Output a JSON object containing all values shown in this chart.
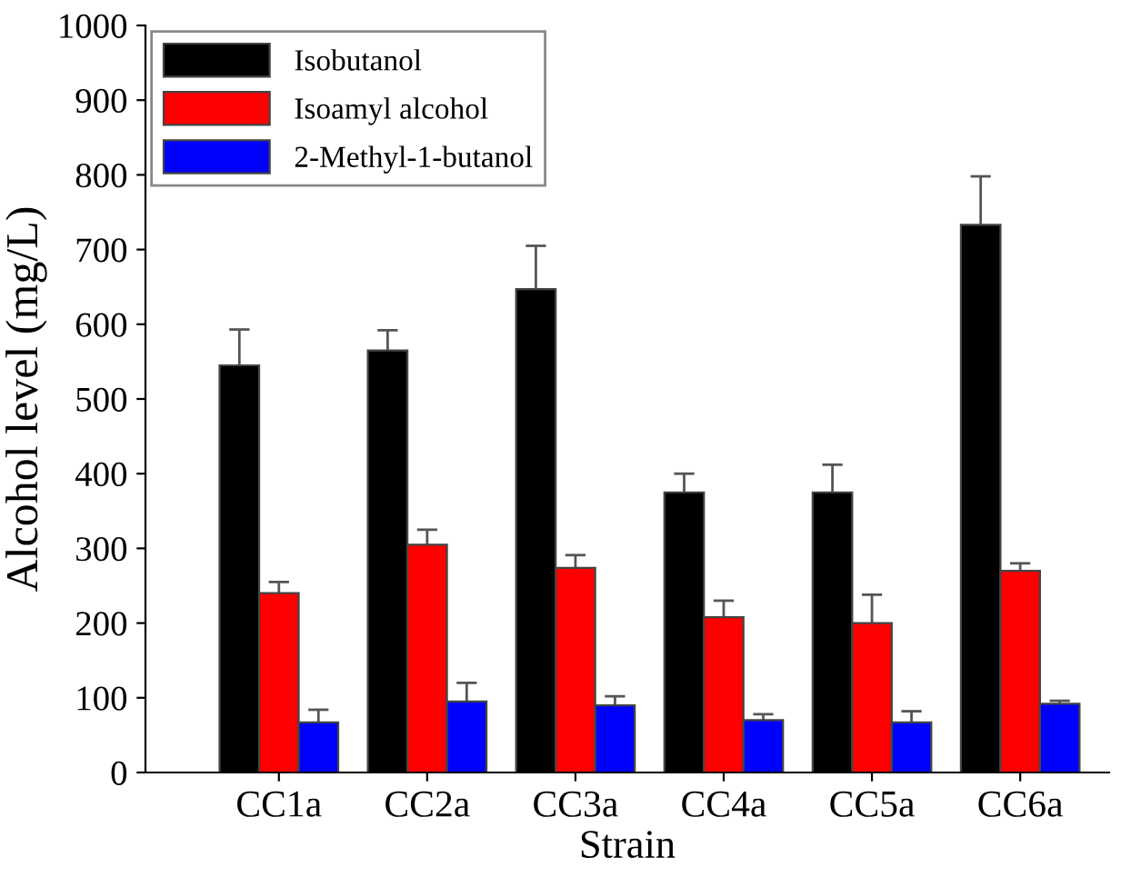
{
  "chart_data": {
    "type": "bar",
    "xlabel": "Strain",
    "ylabel": "Alcohol level (mg/L)",
    "categories": [
      "CC1a",
      "CC2a",
      "CC3a",
      "CC4a",
      "CC5a",
      "CC6a"
    ],
    "series": [
      {
        "name": "Isobutanol",
        "color": "#000000",
        "values": [
          545,
          565,
          647,
          375,
          375,
          733
        ],
        "errors": [
          48,
          27,
          58,
          25,
          37,
          65
        ]
      },
      {
        "name": "Isoamyl alcohol",
        "color": "#ff0000",
        "values": [
          240,
          305,
          274,
          208,
          200,
          270
        ],
        "errors": [
          15,
          20,
          17,
          22,
          38,
          10
        ]
      },
      {
        "name": "2-Methyl-1-butanol",
        "color": "#0000ff",
        "values": [
          67,
          95,
          90,
          70,
          67,
          92
        ],
        "errors": [
          17,
          25,
          12,
          8,
          15,
          4
        ]
      }
    ],
    "ylim": [
      0,
      1000
    ],
    "yticks": [
      0,
      100,
      200,
      300,
      400,
      500,
      600,
      700,
      800,
      900,
      1000
    ],
    "grid": false,
    "legend": "top left"
  }
}
